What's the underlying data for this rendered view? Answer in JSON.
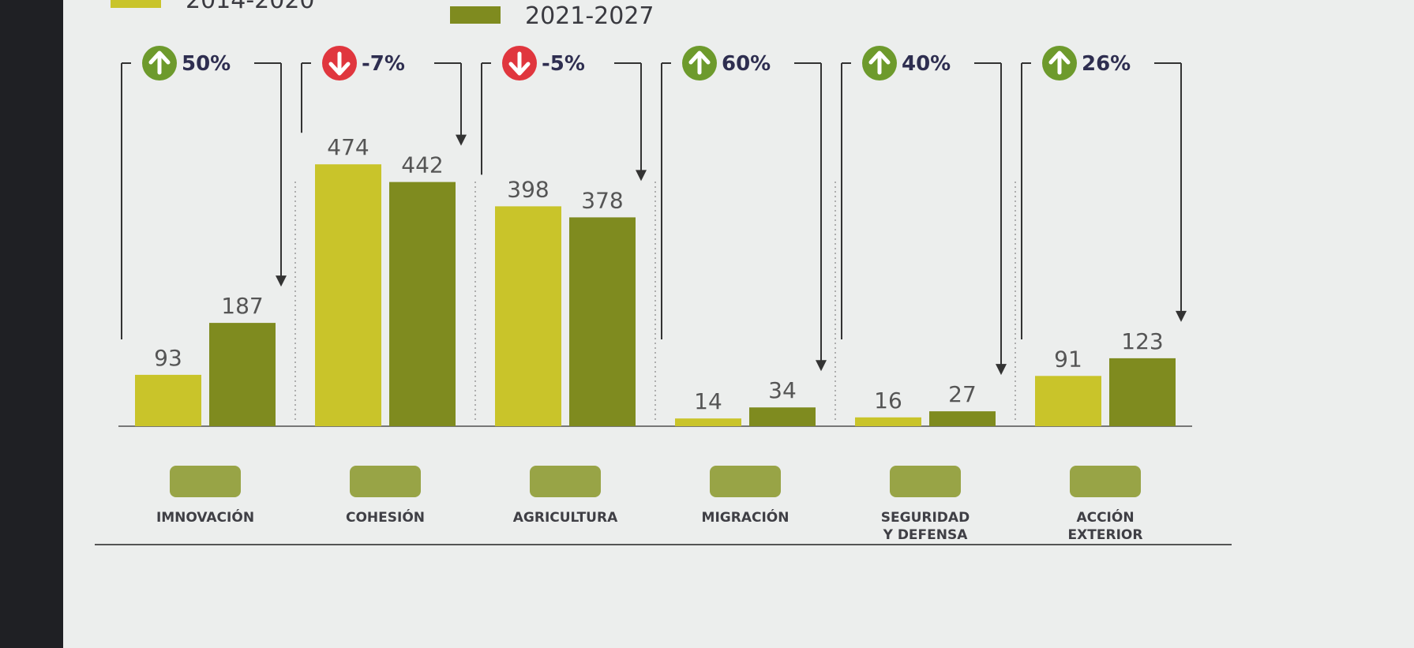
{
  "chart_data": {
    "type": "bar",
    "categories": [
      "IMNOVACIÓN",
      "COHESIÓN",
      "AGRICULTURA",
      "MIGRACIÓN",
      "SEGURIDAD Y DEFENSA",
      "ACCIÓN EXTERIOR"
    ],
    "series": [
      {
        "name": "2014-2020",
        "color": "#c9c42a",
        "values": [
          93,
          474,
          398,
          14,
          16,
          91
        ]
      },
      {
        "name": "2021-2027",
        "color": "#7f8b1f",
        "values": [
          187,
          442,
          378,
          34,
          27,
          123
        ]
      }
    ],
    "annotations": [
      "50%",
      "-7%",
      "-5%",
      "60%",
      "40%",
      "26%"
    ]
  }
}
